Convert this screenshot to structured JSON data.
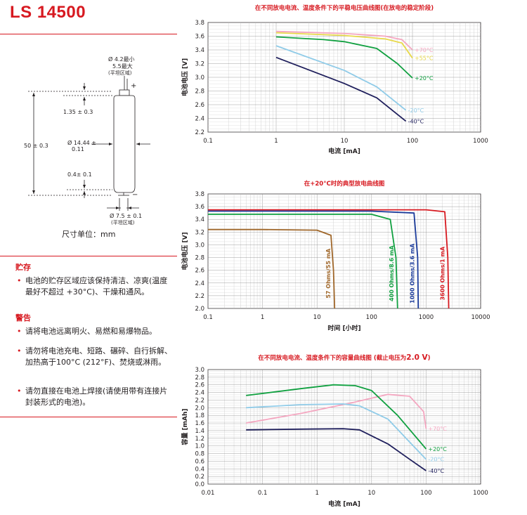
{
  "model": "LS 14500",
  "drawing": {
    "top_dia_line1": "Ø 4.2最小",
    "top_dia_line2": "5.5最大",
    "top_flat": "(平坦区域)",
    "plus": "+",
    "minus": "−",
    "top_height": "1.35 ± 0.3",
    "body_dia_line1": "Ø 14.44 ±",
    "body_dia_line2": "0.11",
    "length": "50 ± 0.3",
    "bottom_height": "0.4± 0.1",
    "bottom_dia": "Ø 7.5 ± 0.1",
    "bottom_flat": "(平坦区域)",
    "unit": "尺寸单位：mm"
  },
  "storage": {
    "heading": "贮存",
    "items": [
      "电池的贮存区域应该保持清洁、凉爽(温度最好不超过 +30°C)、干燥和通风。"
    ]
  },
  "warning": {
    "heading": "警告",
    "items": [
      "请将电池远离明火、易燃和易爆物品。",
      "请勿将电池充电、短路、碾碎、自行拆解、加热高于100°C (212°F)、焚烧或淋雨。",
      "请勿直接在电池上焊接(请使用带有连接片封装形式的电池)。"
    ]
  },
  "colors": {
    "accent": "#d71920",
    "pink": "#f4a6c0",
    "yellow": "#e8d94a",
    "green": "#10a040",
    "lightblue": "#8fcbe8",
    "navy": "#1f1f5c",
    "brown": "#a0672a",
    "blue": "#1a3a9a",
    "red": "#d71920"
  },
  "chart_data": [
    {
      "type": "line",
      "title": "在不同放电电流、温度条件下的平稳电压曲线图(在放电的稳定阶段)",
      "xlabel": "电流 [mA]",
      "ylabel": "电池电压 [V]",
      "xscale": "log",
      "xlim": [
        0.1,
        1000
      ],
      "ylim": [
        2.2,
        3.8
      ],
      "xticks": [
        "0.1",
        "1",
        "10",
        "100",
        "1000"
      ],
      "yticks": [
        "2.2",
        "2.4",
        "2.6",
        "2.8",
        "3.0",
        "3.2",
        "3.4",
        "3.6",
        "3.8"
      ],
      "series": [
        {
          "name": "+70°C",
          "color": "pink",
          "x": [
            1,
            10,
            40,
            70,
            100
          ],
          "y": [
            3.67,
            3.64,
            3.6,
            3.55,
            3.4
          ]
        },
        {
          "name": "+55°C",
          "color": "yellow",
          "x": [
            1,
            10,
            40,
            70,
            100
          ],
          "y": [
            3.65,
            3.61,
            3.56,
            3.5,
            3.28
          ]
        },
        {
          "name": "+20°C",
          "color": "green",
          "x": [
            1,
            5,
            10,
            30,
            60,
            100
          ],
          "y": [
            3.59,
            3.55,
            3.52,
            3.42,
            3.2,
            2.99
          ]
        },
        {
          "name": "-20°C",
          "color": "lightblue",
          "x": [
            1,
            10,
            30,
            80
          ],
          "y": [
            3.46,
            3.1,
            2.86,
            2.52
          ]
        },
        {
          "name": "-40°C",
          "color": "navy",
          "x": [
            1,
            10,
            30,
            80
          ],
          "y": [
            3.29,
            2.91,
            2.7,
            2.36
          ]
        }
      ]
    },
    {
      "type": "line",
      "title": "在+20°C时的典型放电曲线图",
      "xlabel": "时间 [小时]",
      "ylabel": "电池电压 [V]",
      "xscale": "log",
      "xlim": [
        0.1,
        10000
      ],
      "ylim": [
        2.0,
        3.8
      ],
      "xticks": [
        "0.1",
        "1",
        "10",
        "100",
        "1000",
        "10000"
      ],
      "yticks": [
        "2.0",
        "2.2",
        "2.4",
        "2.6",
        "2.8",
        "3.0",
        "3.2",
        "3.4",
        "3.6",
        "3.8"
      ],
      "series": [
        {
          "name": "57 Ohms/55 mA",
          "color": "brown",
          "x": [
            0.1,
            1,
            10,
            18,
            20,
            21
          ],
          "y": [
            3.24,
            3.24,
            3.23,
            3.15,
            2.6,
            2.0
          ]
        },
        {
          "name": "400 Ohms/8.6 mA",
          "color": "green",
          "x": [
            0.1,
            10,
            100,
            220,
            280,
            300
          ],
          "y": [
            3.48,
            3.48,
            3.48,
            3.4,
            2.8,
            2.0
          ]
        },
        {
          "name": "1000 Ohms/3.6 mA",
          "color": "blue",
          "x": [
            0.1,
            10,
            100,
            600,
            700,
            720
          ],
          "y": [
            3.53,
            3.53,
            3.53,
            3.5,
            2.8,
            2.0
          ]
        },
        {
          "name": "3600 Ohms/1 mA",
          "color": "red",
          "x": [
            0.1,
            10,
            100,
            1000,
            2200,
            2500,
            2600
          ],
          "y": [
            3.55,
            3.55,
            3.55,
            3.55,
            3.52,
            2.8,
            2.0
          ]
        }
      ]
    },
    {
      "type": "line",
      "title_prefix": "在不同放电电流、温度条件下的容量曲线图 (截止电压为",
      "title_value": "2.0 V",
      "title_suffix": ")",
      "xlabel": "电流 [mA]",
      "ylabel": "容量 [mAh]",
      "xscale": "log",
      "xlim": [
        0.01,
        1000
      ],
      "ylim": [
        0,
        3.0
      ],
      "xticks": [
        "0.01",
        "0.1",
        "1",
        "10",
        "100",
        "1000"
      ],
      "yticks": [
        "0.0",
        "0.2",
        "0.4",
        "0.6",
        "0.8",
        "1.0",
        "1.2",
        "1.4",
        "1.6",
        "1.8",
        "2.0",
        "2.2",
        "2.4",
        "2.6",
        "2.8",
        "3.0"
      ],
      "series": [
        {
          "name": "+70°C",
          "color": "pink",
          "x": [
            0.05,
            0.5,
            5,
            20,
            50,
            90,
            100
          ],
          "y": [
            1.6,
            1.85,
            2.15,
            2.35,
            2.3,
            1.9,
            1.45
          ]
        },
        {
          "name": "+20°C",
          "color": "green",
          "x": [
            0.05,
            0.5,
            2,
            5,
            10,
            30,
            100
          ],
          "y": [
            2.32,
            2.5,
            2.6,
            2.58,
            2.45,
            1.8,
            0.92
          ]
        },
        {
          "name": "-20°C",
          "color": "lightblue",
          "x": [
            0.05,
            0.5,
            3,
            6,
            20,
            50,
            100
          ],
          "y": [
            2.0,
            2.08,
            2.1,
            2.05,
            1.7,
            1.1,
            0.65
          ]
        },
        {
          "name": "-40°C",
          "color": "navy",
          "x": [
            0.05,
            0.5,
            3,
            6,
            20,
            50,
            100
          ],
          "y": [
            1.42,
            1.44,
            1.45,
            1.42,
            1.05,
            0.65,
            0.35
          ]
        }
      ]
    }
  ]
}
